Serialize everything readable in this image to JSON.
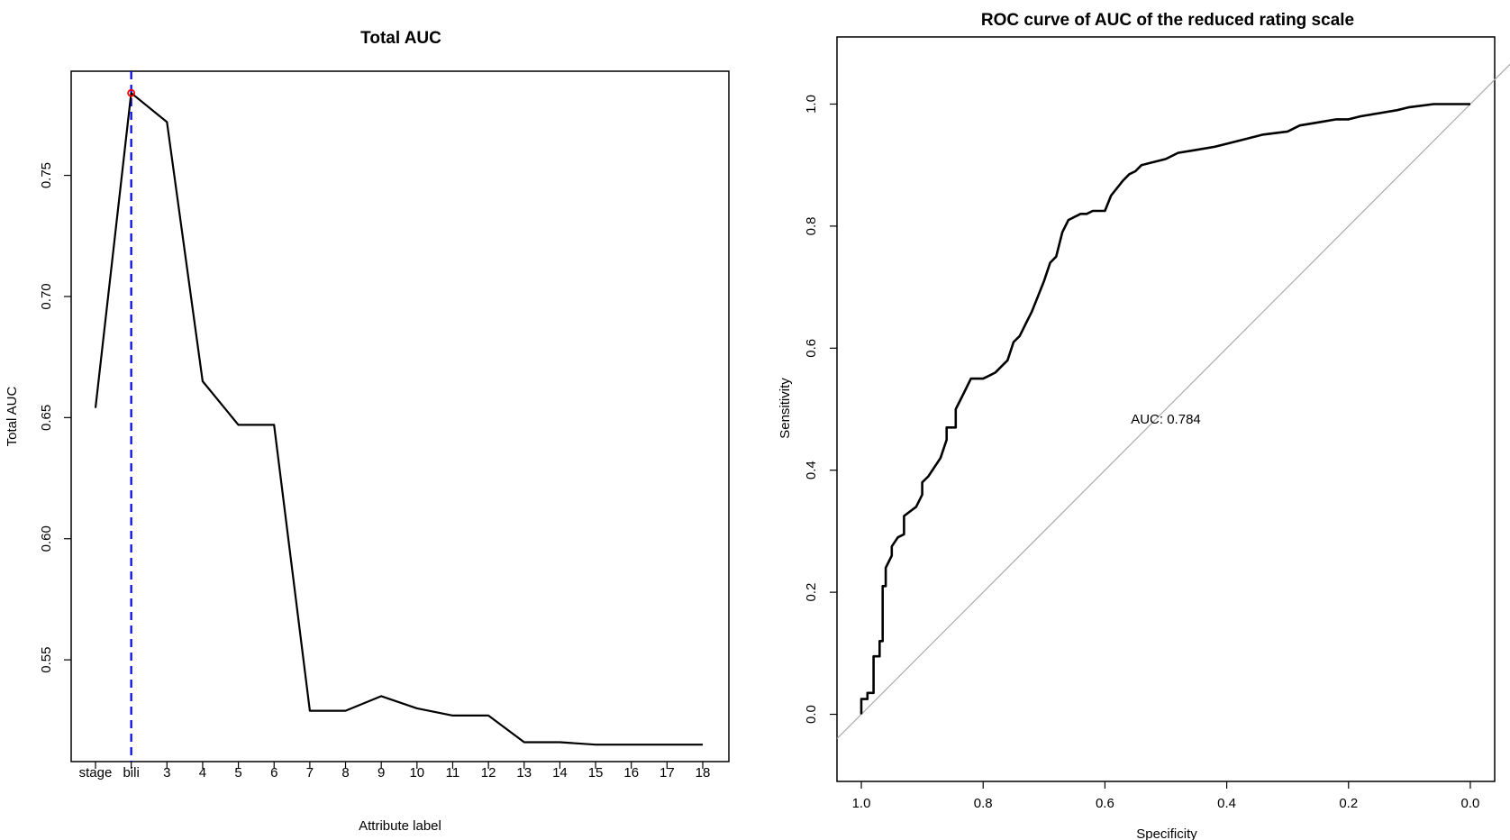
{
  "chart_data": [
    {
      "type": "line",
      "title": "Total AUC",
      "xlabel": "Attribute label",
      "ylabel": "Total AUC",
      "categories": [
        "stage",
        "bili",
        "3",
        "4",
        "5",
        "6",
        "7",
        "8",
        "9",
        "10",
        "11",
        "12",
        "13",
        "14",
        "15",
        "16",
        "17",
        "18"
      ],
      "values": [
        0.654,
        0.784,
        0.772,
        0.665,
        0.647,
        0.647,
        0.529,
        0.529,
        0.535,
        0.53,
        0.527,
        0.527,
        0.516,
        0.516,
        0.515,
        0.515,
        0.515,
        0.515
      ],
      "yticks": [
        "0.55",
        "0.60",
        "0.65",
        "0.70",
        "0.75"
      ],
      "ylim": [
        0.508,
        0.793
      ],
      "highlight": {
        "category": "bili",
        "value": 0.784,
        "marker_color": "#ff0000",
        "line_color": "#0000ff"
      },
      "line_color": "#000000",
      "grid": false
    },
    {
      "type": "line",
      "title": "ROC curve of AUC of the reduced rating scale",
      "xlabel": "Specificity",
      "ylabel": "Sensitivity",
      "xlim": [
        1.04,
        -0.04
      ],
      "ylim": [
        -0.11,
        1.11
      ],
      "xticks": [
        "1.0",
        "0.8",
        "0.6",
        "0.4",
        "0.2",
        "0.0"
      ],
      "yticks": [
        "0.0",
        "0.2",
        "0.4",
        "0.6",
        "0.8",
        "1.0"
      ],
      "annotation": "AUC: 0.784",
      "line_color": "#000000",
      "reference_color": "#aaaaaa",
      "grid": false,
      "series": [
        {
          "x": [
            1.0,
            1.0,
            0.99,
            0.99,
            0.98,
            0.98,
            0.97,
            0.97,
            0.965,
            0.965,
            0.96,
            0.96,
            0.95,
            0.95,
            0.94,
            0.93,
            0.93,
            0.91,
            0.9,
            0.9,
            0.89,
            0.87,
            0.86,
            0.86,
            0.845,
            0.845,
            0.835,
            0.82,
            0.81,
            0.8,
            0.79,
            0.78,
            0.77,
            0.76,
            0.75,
            0.74,
            0.73,
            0.72,
            0.71,
            0.7,
            0.69,
            0.68,
            0.67,
            0.66,
            0.65,
            0.64,
            0.63,
            0.62,
            0.6,
            0.59,
            0.57,
            0.56,
            0.55,
            0.54,
            0.5,
            0.48,
            0.45,
            0.42,
            0.4,
            0.38,
            0.34,
            0.3,
            0.29,
            0.28,
            0.25,
            0.22,
            0.2,
            0.18,
            0.15,
            0.12,
            0.1,
            0.06,
            0.04,
            0.0
          ],
          "y": [
            0.0,
            0.025,
            0.025,
            0.035,
            0.035,
            0.095,
            0.095,
            0.12,
            0.12,
            0.21,
            0.21,
            0.24,
            0.26,
            0.275,
            0.29,
            0.295,
            0.325,
            0.34,
            0.36,
            0.38,
            0.39,
            0.42,
            0.45,
            0.47,
            0.47,
            0.5,
            0.52,
            0.55,
            0.55,
            0.55,
            0.555,
            0.56,
            0.57,
            0.58,
            0.61,
            0.62,
            0.64,
            0.66,
            0.685,
            0.71,
            0.74,
            0.75,
            0.79,
            0.81,
            0.815,
            0.82,
            0.82,
            0.825,
            0.825,
            0.85,
            0.875,
            0.885,
            0.89,
            0.9,
            0.91,
            0.92,
            0.925,
            0.93,
            0.935,
            0.94,
            0.95,
            0.955,
            0.96,
            0.965,
            0.97,
            0.975,
            0.975,
            0.98,
            0.985,
            0.99,
            0.995,
            1.0,
            1.0,
            1.0
          ]
        }
      ]
    }
  ]
}
